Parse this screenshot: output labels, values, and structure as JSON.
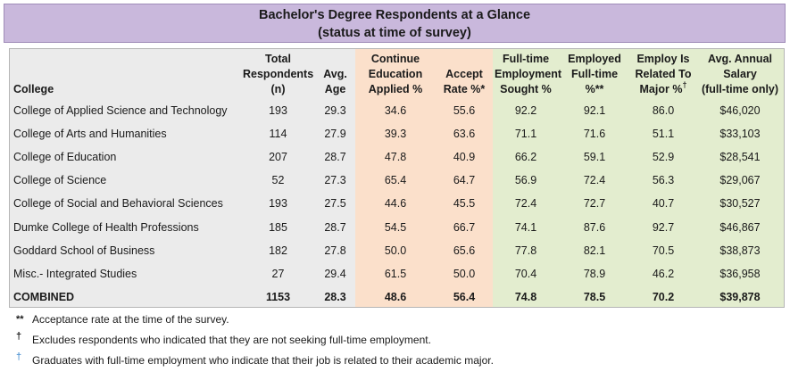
{
  "title": {
    "line1": "Bachelor's Degree Respondents at a Glance",
    "line2": "(status at time of survey)"
  },
  "columns": [
    {
      "key": "college",
      "label": "College"
    },
    {
      "key": "total",
      "label": "Total\nRespondents\n(n)"
    },
    {
      "key": "age",
      "label": "Avg.\nAge"
    },
    {
      "key": "continue",
      "label": "Continue\nEducation\nApplied %"
    },
    {
      "key": "accept",
      "label": "Accept\nRate %*"
    },
    {
      "key": "fulltime_sought",
      "label": "Full-time\nEmployment\nSought %"
    },
    {
      "key": "employed",
      "label": "Employed\nFull-time %**"
    },
    {
      "key": "related",
      "label": "Employ Is\nRelated To\nMajor %",
      "sup": "†"
    },
    {
      "key": "salary",
      "label": "Avg. Annual\nSalary\n(full-time only)"
    }
  ],
  "rows": [
    [
      "College of Applied Science and Technology",
      "193",
      "29.3",
      "34.6",
      "55.6",
      "92.2",
      "92.1",
      "86.0",
      "$46,020"
    ],
    [
      "College of Arts and Humanities",
      "114",
      "27.9",
      "39.3",
      "63.6",
      "71.1",
      "71.6",
      "51.1",
      "$33,103"
    ],
    [
      "College of Education",
      "207",
      "28.7",
      "47.8",
      "40.9",
      "66.2",
      "59.1",
      "52.9",
      "$28,541"
    ],
    [
      "College of Science",
      "52",
      "27.3",
      "65.4",
      "64.7",
      "56.9",
      "72.4",
      "56.3",
      "$29,067"
    ],
    [
      "College of Social and Behavioral Sciences",
      "193",
      "27.5",
      "44.6",
      "45.5",
      "72.4",
      "72.7",
      "40.7",
      "$30,527"
    ],
    [
      "Dumke College of Health Professions",
      "185",
      "28.7",
      "54.5",
      "66.7",
      "74.1",
      "87.6",
      "92.7",
      "$46,867"
    ],
    [
      "Goddard School of Business",
      "182",
      "27.8",
      "50.0",
      "65.6",
      "77.8",
      "82.1",
      "70.5",
      "$38,873"
    ],
    [
      "Misc.- Integrated Studies",
      "27",
      "29.4",
      "61.5",
      "50.0",
      "70.4",
      "78.9",
      "46.2",
      "$36,958"
    ]
  ],
  "combined": [
    "COMBINED",
    "1153",
    "28.3",
    "48.6",
    "56.4",
    "74.8",
    "78.5",
    "70.2",
    "$39,878"
  ],
  "column_backgrounds": [
    "gray",
    "gray",
    "gray",
    "orange",
    "orange",
    "green",
    "green",
    "green",
    "green"
  ],
  "colors": {
    "title_bg": "#c9b8dc",
    "gray": "#ebebeb",
    "orange": "#fbe0cb",
    "green": "#e3edcf",
    "note_blue": "#5b9bd5"
  },
  "notes": [
    {
      "symbol": "**",
      "style": "plain",
      "text": "Acceptance rate at the time of the survey."
    },
    {
      "symbol": "†",
      "style": "dagger",
      "text": "Excludes respondents who indicated that they are not seeking full-time employment."
    },
    {
      "symbol": "†",
      "style": "blue",
      "text": "Graduates with full-time employment who indicate that their job is related to their academic major."
    }
  ]
}
